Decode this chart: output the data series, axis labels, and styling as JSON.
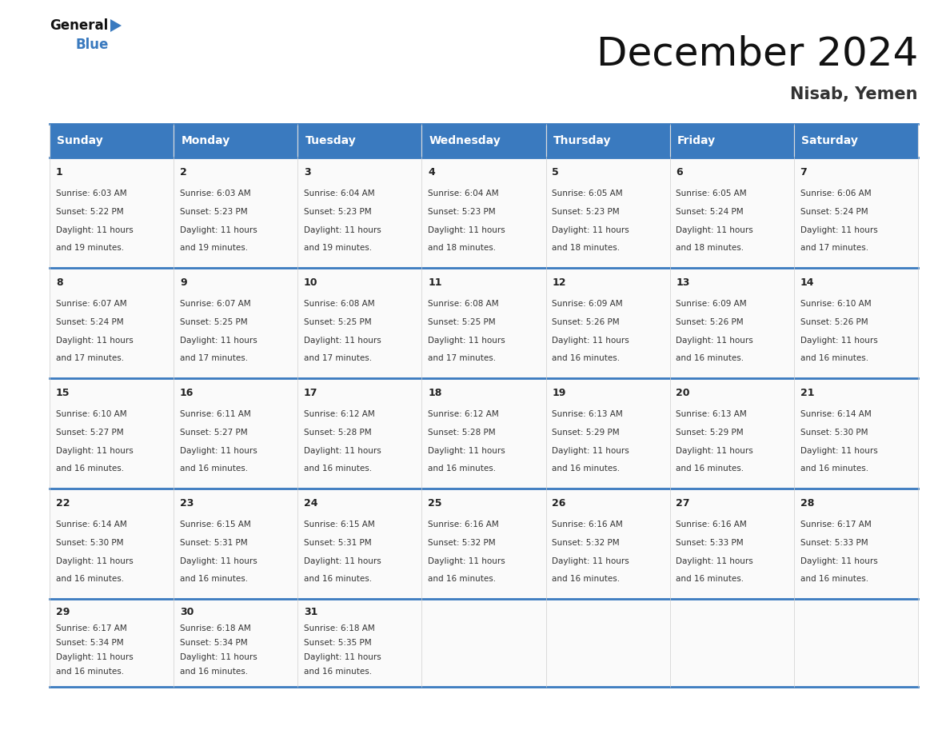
{
  "title": "December 2024",
  "subtitle": "Nisab, Yemen",
  "header_color": "#3a7abf",
  "header_text_color": "#ffffff",
  "days_of_week": [
    "Sunday",
    "Monday",
    "Tuesday",
    "Wednesday",
    "Thursday",
    "Friday",
    "Saturday"
  ],
  "border_color": "#3a7abf",
  "cell_bg": "#ffffff",
  "text_color": "#333333",
  "calendar_data": [
    [
      {
        "day": 1,
        "sunrise": "6:03 AM",
        "sunset": "5:22 PM",
        "daylight_hours": 11,
        "daylight_minutes": 19
      },
      {
        "day": 2,
        "sunrise": "6:03 AM",
        "sunset": "5:23 PM",
        "daylight_hours": 11,
        "daylight_minutes": 19
      },
      {
        "day": 3,
        "sunrise": "6:04 AM",
        "sunset": "5:23 PM",
        "daylight_hours": 11,
        "daylight_minutes": 19
      },
      {
        "day": 4,
        "sunrise": "6:04 AM",
        "sunset": "5:23 PM",
        "daylight_hours": 11,
        "daylight_minutes": 18
      },
      {
        "day": 5,
        "sunrise": "6:05 AM",
        "sunset": "5:23 PM",
        "daylight_hours": 11,
        "daylight_minutes": 18
      },
      {
        "day": 6,
        "sunrise": "6:05 AM",
        "sunset": "5:24 PM",
        "daylight_hours": 11,
        "daylight_minutes": 18
      },
      {
        "day": 7,
        "sunrise": "6:06 AM",
        "sunset": "5:24 PM",
        "daylight_hours": 11,
        "daylight_minutes": 17
      }
    ],
    [
      {
        "day": 8,
        "sunrise": "6:07 AM",
        "sunset": "5:24 PM",
        "daylight_hours": 11,
        "daylight_minutes": 17
      },
      {
        "day": 9,
        "sunrise": "6:07 AM",
        "sunset": "5:25 PM",
        "daylight_hours": 11,
        "daylight_minutes": 17
      },
      {
        "day": 10,
        "sunrise": "6:08 AM",
        "sunset": "5:25 PM",
        "daylight_hours": 11,
        "daylight_minutes": 17
      },
      {
        "day": 11,
        "sunrise": "6:08 AM",
        "sunset": "5:25 PM",
        "daylight_hours": 11,
        "daylight_minutes": 17
      },
      {
        "day": 12,
        "sunrise": "6:09 AM",
        "sunset": "5:26 PM",
        "daylight_hours": 11,
        "daylight_minutes": 16
      },
      {
        "day": 13,
        "sunrise": "6:09 AM",
        "sunset": "5:26 PM",
        "daylight_hours": 11,
        "daylight_minutes": 16
      },
      {
        "day": 14,
        "sunrise": "6:10 AM",
        "sunset": "5:26 PM",
        "daylight_hours": 11,
        "daylight_minutes": 16
      }
    ],
    [
      {
        "day": 15,
        "sunrise": "6:10 AM",
        "sunset": "5:27 PM",
        "daylight_hours": 11,
        "daylight_minutes": 16
      },
      {
        "day": 16,
        "sunrise": "6:11 AM",
        "sunset": "5:27 PM",
        "daylight_hours": 11,
        "daylight_minutes": 16
      },
      {
        "day": 17,
        "sunrise": "6:12 AM",
        "sunset": "5:28 PM",
        "daylight_hours": 11,
        "daylight_minutes": 16
      },
      {
        "day": 18,
        "sunrise": "6:12 AM",
        "sunset": "5:28 PM",
        "daylight_hours": 11,
        "daylight_minutes": 16
      },
      {
        "day": 19,
        "sunrise": "6:13 AM",
        "sunset": "5:29 PM",
        "daylight_hours": 11,
        "daylight_minutes": 16
      },
      {
        "day": 20,
        "sunrise": "6:13 AM",
        "sunset": "5:29 PM",
        "daylight_hours": 11,
        "daylight_minutes": 16
      },
      {
        "day": 21,
        "sunrise": "6:14 AM",
        "sunset": "5:30 PM",
        "daylight_hours": 11,
        "daylight_minutes": 16
      }
    ],
    [
      {
        "day": 22,
        "sunrise": "6:14 AM",
        "sunset": "5:30 PM",
        "daylight_hours": 11,
        "daylight_minutes": 16
      },
      {
        "day": 23,
        "sunrise": "6:15 AM",
        "sunset": "5:31 PM",
        "daylight_hours": 11,
        "daylight_minutes": 16
      },
      {
        "day": 24,
        "sunrise": "6:15 AM",
        "sunset": "5:31 PM",
        "daylight_hours": 11,
        "daylight_minutes": 16
      },
      {
        "day": 25,
        "sunrise": "6:16 AM",
        "sunset": "5:32 PM",
        "daylight_hours": 11,
        "daylight_minutes": 16
      },
      {
        "day": 26,
        "sunrise": "6:16 AM",
        "sunset": "5:32 PM",
        "daylight_hours": 11,
        "daylight_minutes": 16
      },
      {
        "day": 27,
        "sunrise": "6:16 AM",
        "sunset": "5:33 PM",
        "daylight_hours": 11,
        "daylight_minutes": 16
      },
      {
        "day": 28,
        "sunrise": "6:17 AM",
        "sunset": "5:33 PM",
        "daylight_hours": 11,
        "daylight_minutes": 16
      }
    ],
    [
      {
        "day": 29,
        "sunrise": "6:17 AM",
        "sunset": "5:34 PM",
        "daylight_hours": 11,
        "daylight_minutes": 16
      },
      {
        "day": 30,
        "sunrise": "6:18 AM",
        "sunset": "5:34 PM",
        "daylight_hours": 11,
        "daylight_minutes": 16
      },
      {
        "day": 31,
        "sunrise": "6:18 AM",
        "sunset": "5:35 PM",
        "daylight_hours": 11,
        "daylight_minutes": 16
      },
      null,
      null,
      null,
      null
    ]
  ],
  "logo_triangle_color": "#3a7abf",
  "title_fontsize": 36,
  "subtitle_fontsize": 15,
  "header_fontsize": 10,
  "daynum_fontsize": 9,
  "cell_fontsize": 7.5
}
